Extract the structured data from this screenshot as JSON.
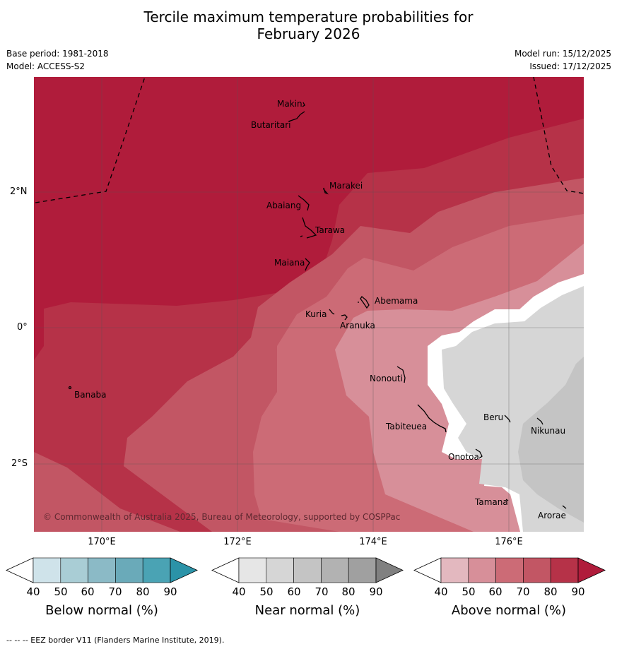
{
  "title_line1": "Tercile maximum temperature probabilities for",
  "title_line2": "February 2026",
  "meta": {
    "base_period": "Base period: 1981-2018",
    "model": "Model: ACCESS-S2",
    "model_run": "Model run: 15/12/2025",
    "issued": "Issued: 17/12/2025"
  },
  "axes": {
    "lat_ticks": [
      "2°N",
      "0°",
      "2°S"
    ],
    "lon_ticks": [
      "170°E",
      "172°E",
      "174°E",
      "176°E"
    ]
  },
  "islands": {
    "makin": "Makin",
    "butaritari": "Butaritari",
    "marakei": "Marakei",
    "abaiang": "Abaiang",
    "tarawa": "Tarawa",
    "maiana": "Maiana",
    "abemama": "Abemama",
    "kuria": "Kuria",
    "aranuka": "Aranuka",
    "banaba": "Banaba",
    "nonouti": "Nonouti",
    "tabiteuea": "Tabiteuea",
    "beru": "Beru",
    "nikunau": "Nikunau",
    "onotoa": "Onotoa",
    "tamana": "Tamana",
    "arorae": "Arorae"
  },
  "copyright": "© Commonwealth of Australia 2025, Bureau of Meteorology, supported by COSPPac",
  "colorbars": {
    "ticks": [
      "40",
      "50",
      "60",
      "70",
      "80",
      "90"
    ],
    "below_label": "Below normal (%)",
    "near_label": "Near normal (%)",
    "above_label": "Above normal (%)",
    "below_colors": [
      "#ffffff",
      "#cfe3ea",
      "#a9cdd5",
      "#8bbac6",
      "#6aaab9",
      "#4aa3b4",
      "#2b93a8"
    ],
    "near_colors": [
      "#ffffff",
      "#e6e6e6",
      "#d6d6d6",
      "#c4c4c4",
      "#b2b2b2",
      "#a0a0a0",
      "#808080"
    ],
    "above_colors": [
      "#ffffff",
      "#e3b8bf",
      "#d78f99",
      "#cc6b76",
      "#c25664",
      "#b63248",
      "#b01c3b"
    ]
  },
  "footer": "-- -- -- EEZ border V11 (Flanders Marine Institute, 2019)."
}
